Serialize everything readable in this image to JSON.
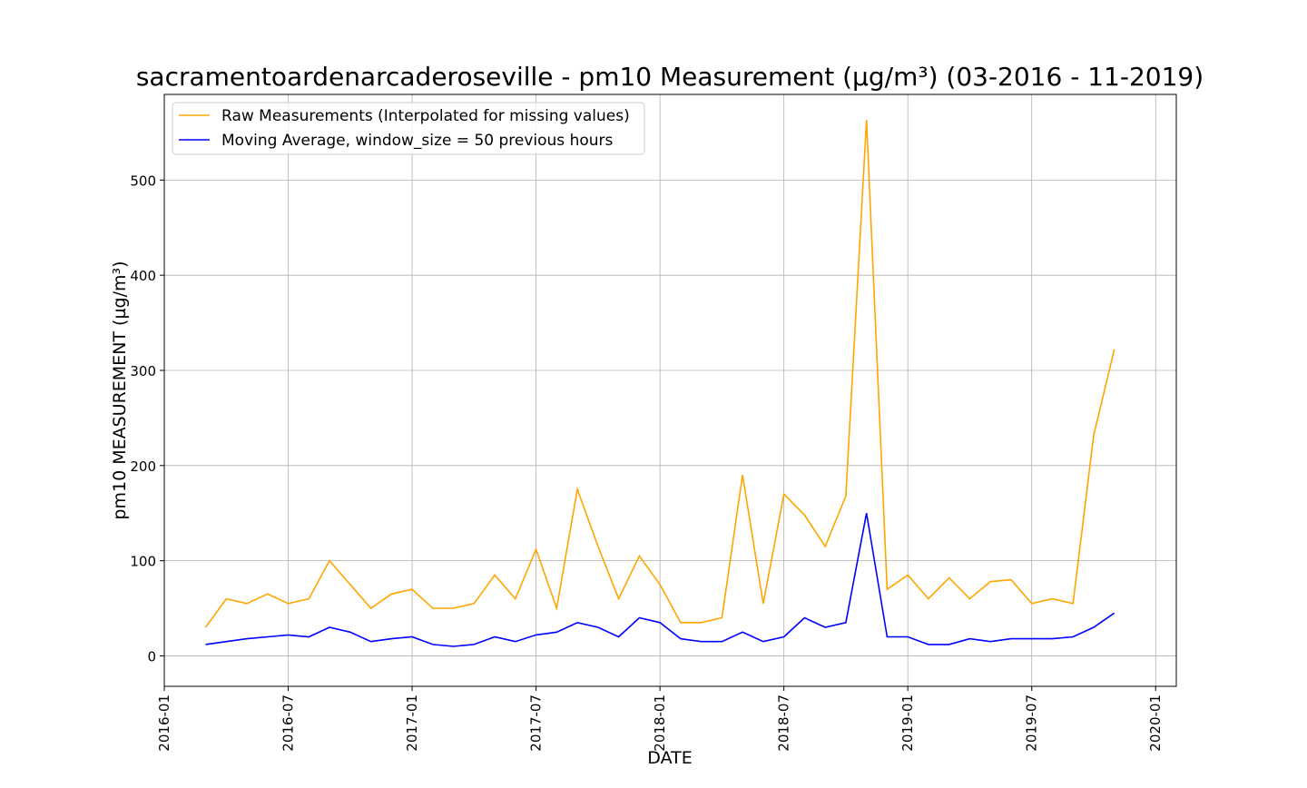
{
  "chart_data": {
    "type": "line",
    "title": "sacramentoardenarcaderoseville - pm10 Measurement (µg/m³) (03-2016 - 11-2019)",
    "x_label": "DATE",
    "y_label": "pm10 MEASUREMENT (µg/m³)",
    "x": [
      "2016-03",
      "2016-04",
      "2016-05",
      "2016-06",
      "2016-07",
      "2016-08",
      "2016-09",
      "2016-10",
      "2016-11",
      "2016-12",
      "2017-01",
      "2017-02",
      "2017-03",
      "2017-04",
      "2017-05",
      "2017-06",
      "2017-07",
      "2017-08",
      "2017-09",
      "2017-10",
      "2017-11",
      "2017-12",
      "2018-01",
      "2018-02",
      "2018-03",
      "2018-04",
      "2018-05",
      "2018-06",
      "2018-07",
      "2018-08",
      "2018-09",
      "2018-10",
      "2018-11",
      "2018-12",
      "2019-01",
      "2019-02",
      "2019-03",
      "2019-04",
      "2019-05",
      "2019-06",
      "2019-07",
      "2019-08",
      "2019-09",
      "2019-10",
      "2019-11"
    ],
    "series": [
      {
        "name": "Raw Measurements (Interpolated for missing values)",
        "color": "#ffa500",
        "values": [
          30,
          60,
          55,
          65,
          55,
          60,
          100,
          75,
          50,
          65,
          70,
          50,
          50,
          55,
          85,
          60,
          112,
          50,
          175,
          115,
          60,
          105,
          75,
          35,
          35,
          40,
          190,
          55,
          170,
          148,
          115,
          168,
          563,
          70,
          85,
          60,
          82,
          60,
          78,
          80,
          55,
          60,
          55,
          232,
          322
        ]
      },
      {
        "name": "Moving Average, window_size = 50 previous hours",
        "color": "#0000ff",
        "values": [
          12,
          15,
          18,
          20,
          22,
          20,
          30,
          25,
          15,
          18,
          20,
          12,
          10,
          12,
          20,
          15,
          22,
          25,
          35,
          30,
          20,
          40,
          35,
          18,
          15,
          15,
          25,
          15,
          20,
          40,
          30,
          35,
          150,
          20,
          20,
          12,
          12,
          18,
          15,
          18,
          18,
          18,
          20,
          30,
          45
        ]
      }
    ],
    "xlim": [
      "2016-01",
      "2020-02"
    ],
    "xticks": [
      "2016-01",
      "2016-07",
      "2017-01",
      "2017-07",
      "2018-01",
      "2018-07",
      "2019-01",
      "2019-07",
      "2020-01"
    ],
    "ylim": [
      -32,
      590
    ],
    "yticks": [
      0,
      100,
      200,
      300,
      400,
      500
    ],
    "grid": true,
    "legend": "upper left"
  }
}
